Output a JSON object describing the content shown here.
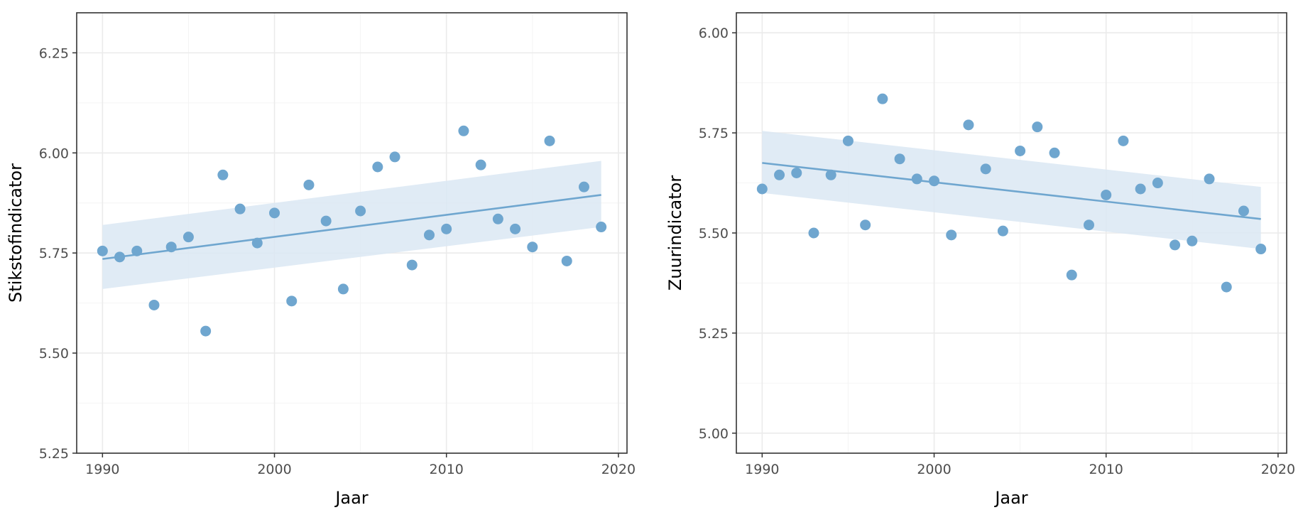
{
  "colors": {
    "point": "#6fa6cf",
    "line": "#6fa6cf",
    "ribbon": "#dbe7f3",
    "panel_border": "#333333",
    "grid_major": "#ebebeb",
    "grid_minor": "#f4f4f4",
    "tick_label": "#4d4d4d",
    "axis_title": "#000000"
  },
  "chart_data": [
    {
      "type": "scatter",
      "title": "",
      "xlabel": "Jaar",
      "ylabel": "Stikstofindicator",
      "xlim": [
        1988.5,
        2020.5
      ],
      "ylim": [
        5.25,
        6.35
      ],
      "x_ticks": [
        1990,
        2000,
        2010,
        2020
      ],
      "x_tick_labels": [
        "1990",
        "2000",
        "2010",
        "2020"
      ],
      "y_ticks": [
        5.25,
        5.5,
        5.75,
        6.0,
        6.25
      ],
      "y_tick_labels": [
        "5.25",
        "5.50",
        "5.75",
        "6.00",
        "6.25"
      ],
      "grid": true,
      "series": [
        {
          "x": [
            1990,
            1991,
            1992,
            1993,
            1994,
            1995,
            1996,
            1997,
            1998,
            1999,
            2000,
            2001,
            2002,
            2003,
            2004,
            2005,
            2006,
            2007,
            2008,
            2009,
            2010,
            2011,
            2012,
            2013,
            2014,
            2015,
            2016,
            2017,
            2018,
            2019
          ],
          "y": [
            5.755,
            5.74,
            5.755,
            5.62,
            5.765,
            5.79,
            5.555,
            5.945,
            5.86,
            5.775,
            5.85,
            5.63,
            5.92,
            5.83,
            5.66,
            5.855,
            5.965,
            5.99,
            5.72,
            5.795,
            5.81,
            6.055,
            5.97,
            5.835,
            5.81,
            5.765,
            6.03,
            5.73,
            5.915,
            5.815
          ]
        }
      ],
      "trend": {
        "x": [
          1990,
          2019
        ],
        "y": [
          5.735,
          5.895
        ],
        "ci_lower": [
          5.66,
          5.815
        ],
        "ci_upper": [
          5.82,
          5.98
        ]
      }
    },
    {
      "type": "scatter",
      "title": "",
      "xlabel": "Jaar",
      "ylabel": "Zuurindicator",
      "xlim": [
        1988.5,
        2020.5
      ],
      "ylim": [
        4.95,
        6.05
      ],
      "x_ticks": [
        1990,
        2000,
        2010,
        2020
      ],
      "x_tick_labels": [
        "1990",
        "2000",
        "2010",
        "2020"
      ],
      "y_ticks": [
        5.0,
        5.25,
        5.5,
        5.75,
        6.0
      ],
      "y_tick_labels": [
        "5.00",
        "5.25",
        "5.50",
        "5.75",
        "6.00"
      ],
      "grid": true,
      "series": [
        {
          "x": [
            1990,
            1991,
            1992,
            1993,
            1994,
            1995,
            1996,
            1997,
            1998,
            1999,
            2000,
            2001,
            2002,
            2003,
            2004,
            2005,
            2006,
            2007,
            2008,
            2009,
            2010,
            2011,
            2012,
            2013,
            2014,
            2015,
            2016,
            2017,
            2018,
            2019
          ],
          "y": [
            5.61,
            5.645,
            5.65,
            5.5,
            5.645,
            5.73,
            5.52,
            5.835,
            5.685,
            5.635,
            5.63,
            5.495,
            5.77,
            5.66,
            5.505,
            5.705,
            5.765,
            5.7,
            5.395,
            5.52,
            5.595,
            5.73,
            5.61,
            5.625,
            5.47,
            5.48,
            5.635,
            5.365,
            5.555,
            5.46
          ]
        }
      ],
      "trend": {
        "x": [
          1990,
          2019
        ],
        "y": [
          5.675,
          5.535
        ],
        "ci_lower": [
          5.6,
          5.46
        ],
        "ci_upper": [
          5.755,
          5.615
        ]
      }
    }
  ]
}
